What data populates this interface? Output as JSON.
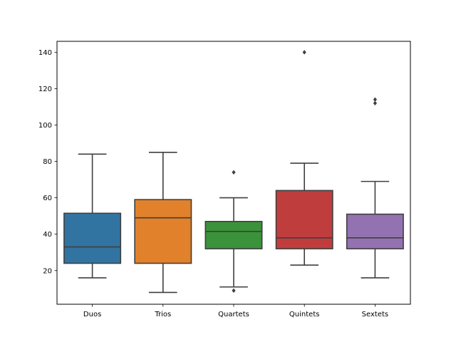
{
  "chart_data": {
    "type": "box",
    "title": "",
    "xlabel": "",
    "ylabel": "",
    "ylim": [
      1.5,
      146
    ],
    "yticks": [
      20,
      40,
      60,
      80,
      100,
      120,
      140
    ],
    "grid": false,
    "categories": [
      "Duos",
      "Trios",
      "Quartets",
      "Quintets",
      "Sextets"
    ],
    "boxes": [
      {
        "category": "Duos",
        "color": "#3274a1",
        "whisker_low": 16,
        "q1": 24,
        "median": 33,
        "q3": 51.5,
        "whisker_high": 84,
        "outliers": []
      },
      {
        "category": "Trios",
        "color": "#e1812c",
        "whisker_low": 8,
        "q1": 24,
        "median": 49,
        "q3": 59,
        "whisker_high": 85,
        "outliers": []
      },
      {
        "category": "Quartets",
        "color": "#3a923a",
        "whisker_low": 11,
        "q1": 32,
        "median": 41.5,
        "q3": 47,
        "whisker_high": 60,
        "outliers": [
          9,
          74
        ]
      },
      {
        "category": "Quintets",
        "color": "#c03d3e",
        "whisker_low": 23,
        "q1": 32,
        "median": 38,
        "q3": 64,
        "whisker_high": 79,
        "outliers": [
          140
        ]
      },
      {
        "category": "Sextets",
        "color": "#9372b2",
        "whisker_low": 16,
        "q1": 32,
        "median": 38,
        "q3": 51,
        "whisker_high": 69,
        "outliers": [
          112,
          114
        ]
      }
    ]
  }
}
